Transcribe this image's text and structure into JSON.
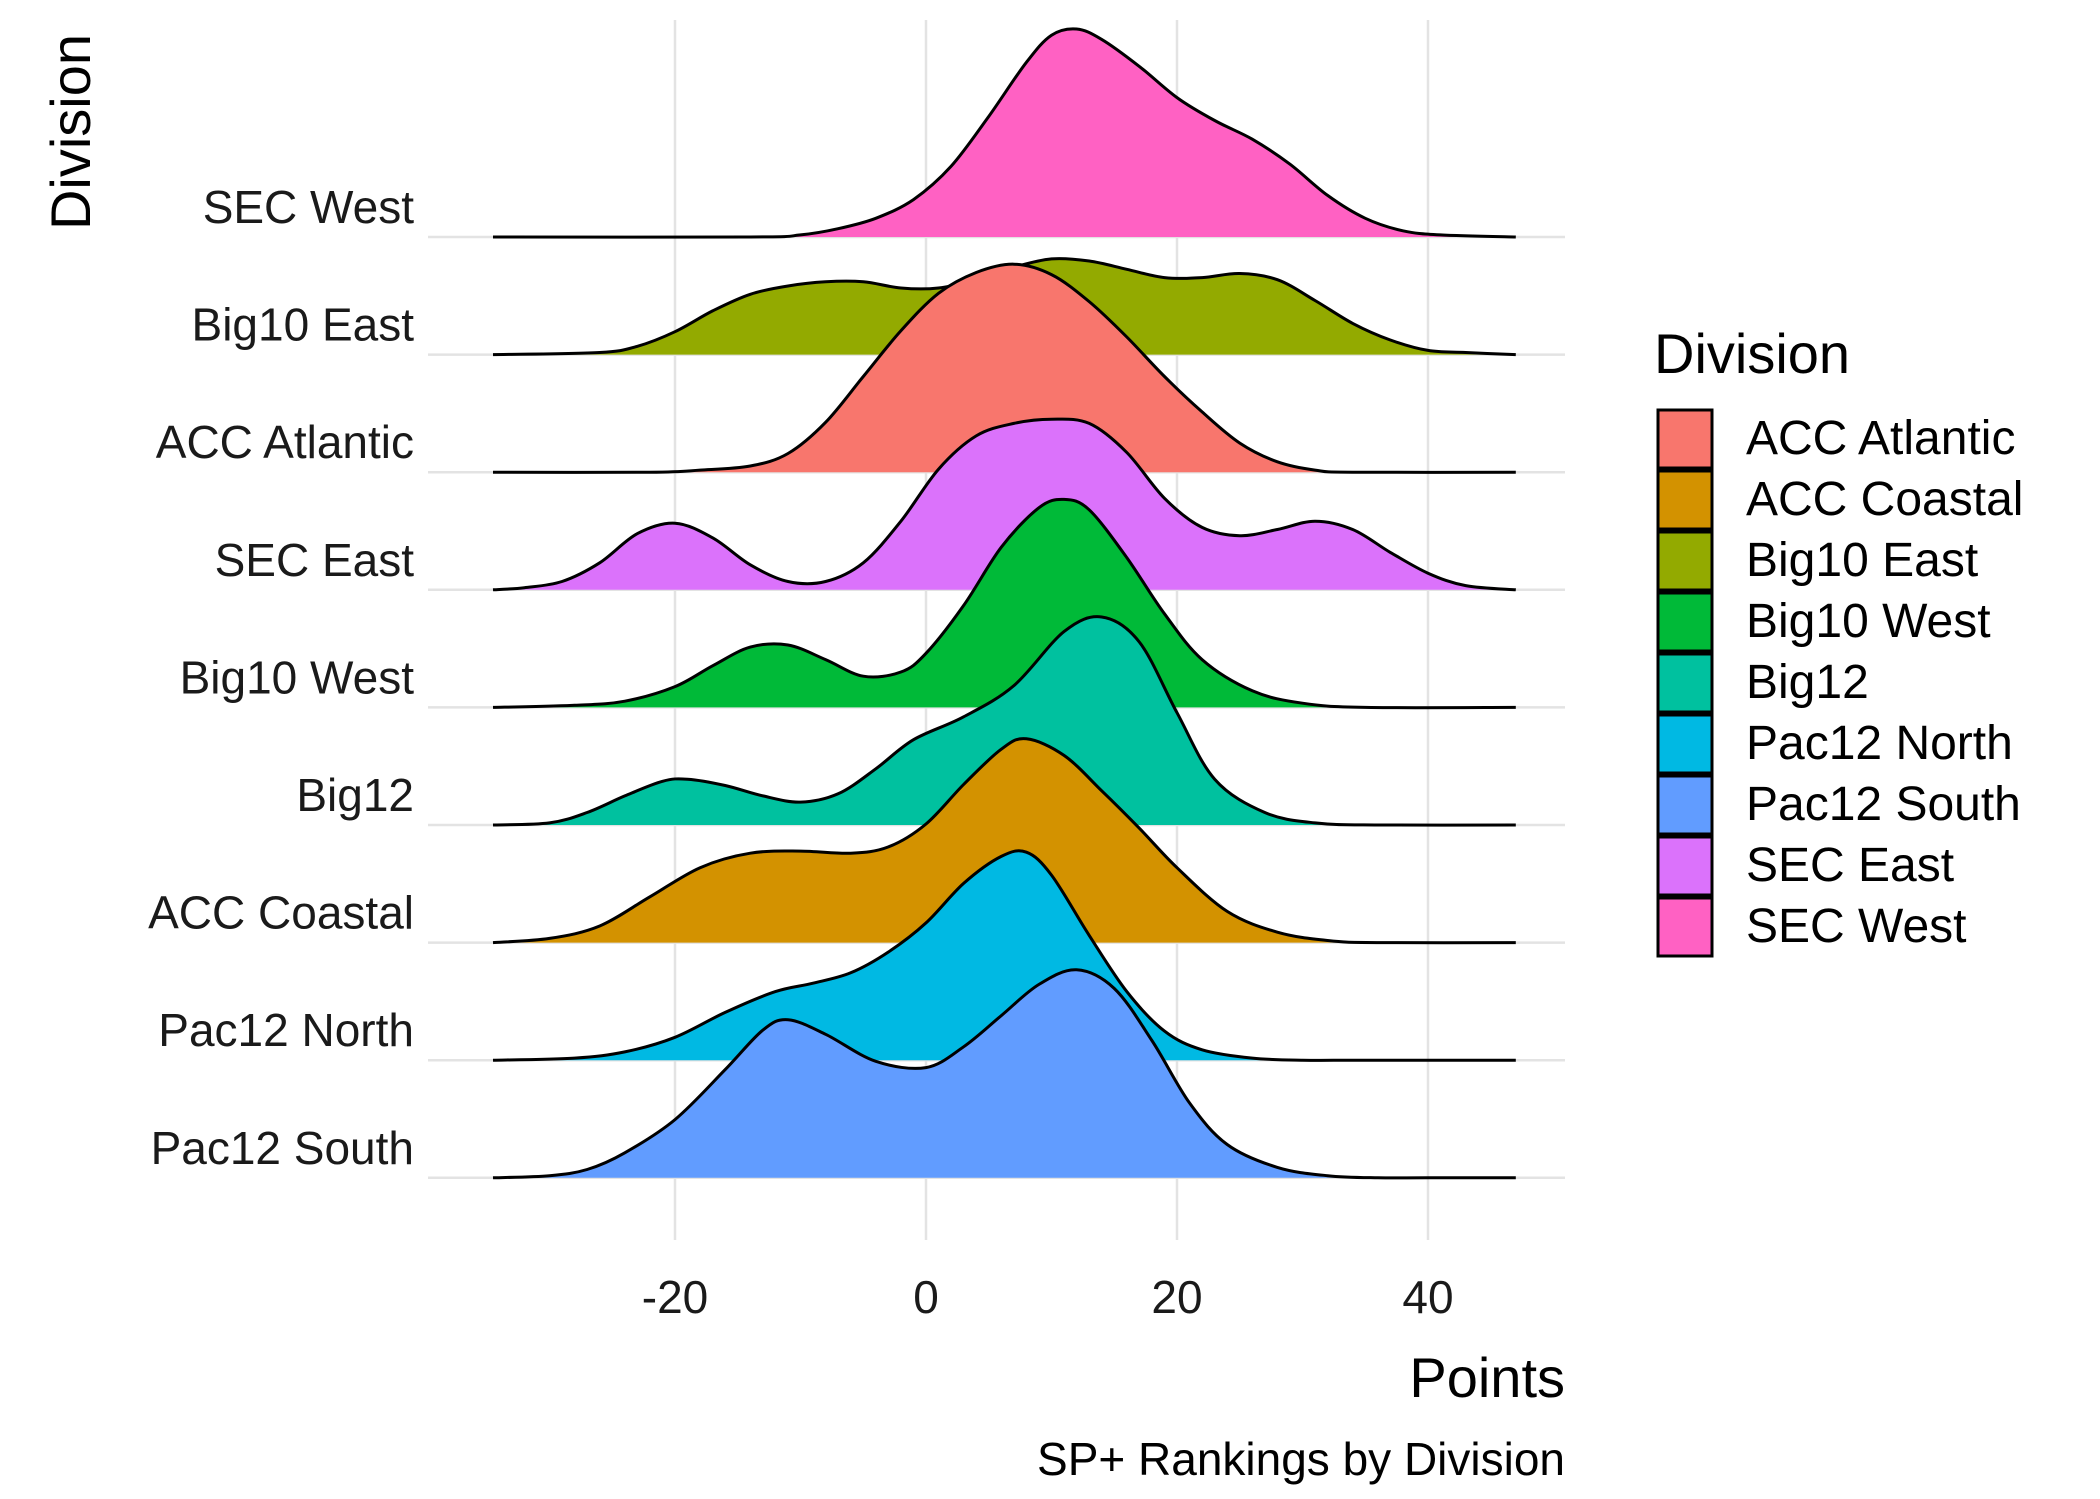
{
  "chart_data": {
    "type": "ridgeline",
    "xlabel": "Points",
    "ylabel": "Division",
    "caption": "SP+ Rankings by Division",
    "xlim": [
      -34.5,
      47
    ],
    "x_ticks": [
      -20,
      0,
      20,
      40
    ],
    "x_tick_labels": [
      "-20",
      "0",
      "20",
      "40"
    ],
    "grid": true,
    "legend": {
      "title": "Division",
      "position": "right",
      "entries": [
        "ACC Atlantic",
        "ACC Coastal",
        "Big10 East",
        "Big10 West",
        "Big12",
        "Pac12 North",
        "Pac12 South",
        "SEC East",
        "SEC West"
      ]
    },
    "colors": {
      "ACC Atlantic": "#F8766D",
      "ACC Coastal": "#D39200",
      "Big10 East": "#93AA00",
      "Big10 West": "#00BA38",
      "Big12": "#00C19F",
      "Pac12 North": "#00B9E3",
      "Pac12 South": "#619CFF",
      "SEC East": "#DB72FB",
      "SEC West": "#FF61C3"
    },
    "series": [
      {
        "name": "Pac12 South",
        "x": [
          -34.5,
          -30,
          -27,
          -24,
          -20,
          -16,
          -13,
          -11,
          -8,
          -4,
          0,
          3,
          6,
          9,
          12,
          15,
          18,
          21,
          24,
          28,
          32,
          36,
          40,
          47
        ],
        "values": [
          0,
          0.01,
          0.04,
          0.12,
          0.28,
          0.52,
          0.71,
          0.76,
          0.69,
          0.56,
          0.53,
          0.63,
          0.78,
          0.93,
          1.0,
          0.91,
          0.66,
          0.36,
          0.16,
          0.05,
          0.01,
          0,
          0,
          0
        ]
      },
      {
        "name": "Pac12 North",
        "x": [
          -34.5,
          -28,
          -24,
          -20,
          -16,
          -12,
          -9,
          -6,
          -3,
          0,
          3,
          6,
          8,
          10,
          13,
          16,
          19,
          22,
          26,
          30,
          35,
          47
        ],
        "values": [
          0,
          0.01,
          0.04,
          0.11,
          0.23,
          0.33,
          0.37,
          0.42,
          0.52,
          0.66,
          0.85,
          0.98,
          1.0,
          0.89,
          0.6,
          0.33,
          0.14,
          0.05,
          0.01,
          0,
          0,
          0
        ]
      },
      {
        "name": "ACC Coastal",
        "x": [
          -34.5,
          -30,
          -26,
          -22,
          -18,
          -14,
          -10,
          -6,
          -3,
          0,
          3,
          6,
          8,
          11,
          14,
          17,
          20,
          24,
          28,
          32,
          36,
          47
        ],
        "values": [
          0,
          0.02,
          0.08,
          0.22,
          0.36,
          0.43,
          0.44,
          0.43,
          0.46,
          0.57,
          0.76,
          0.93,
          0.98,
          0.9,
          0.73,
          0.55,
          0.36,
          0.15,
          0.05,
          0.01,
          0,
          0
        ]
      },
      {
        "name": "Big12",
        "x": [
          -34.5,
          -30,
          -27,
          -24,
          -21,
          -19,
          -16,
          -13,
          -10,
          -7,
          -4,
          -1,
          3,
          7,
          11,
          14,
          17,
          20,
          23,
          27,
          31,
          36,
          47
        ],
        "values": [
          0,
          0.01,
          0.06,
          0.14,
          0.21,
          0.22,
          0.19,
          0.14,
          0.11,
          0.15,
          0.27,
          0.41,
          0.52,
          0.67,
          0.93,
          1.0,
          0.88,
          0.54,
          0.22,
          0.06,
          0.01,
          0,
          0
        ]
      },
      {
        "name": "Big10 West",
        "x": [
          -34.5,
          -28,
          -24,
          -20,
          -17,
          -14,
          -11,
          -8,
          -5,
          -2,
          0,
          3,
          6,
          9,
          11,
          13,
          16,
          19,
          22,
          26,
          30,
          35,
          47
        ],
        "values": [
          0,
          0.01,
          0.03,
          0.1,
          0.2,
          0.29,
          0.3,
          0.23,
          0.15,
          0.17,
          0.26,
          0.49,
          0.77,
          0.96,
          1.0,
          0.95,
          0.72,
          0.45,
          0.23,
          0.08,
          0.02,
          0,
          0
        ]
      },
      {
        "name": "SEC East",
        "x": [
          -34.5,
          -32,
          -29,
          -26,
          -23,
          -20,
          -17,
          -14,
          -11,
          -8,
          -5,
          -2,
          1,
          4,
          7,
          10,
          13,
          16,
          19,
          22,
          25,
          28,
          31,
          34,
          37,
          40,
          43,
          47
        ],
        "values": [
          0,
          0.01,
          0.04,
          0.13,
          0.27,
          0.32,
          0.25,
          0.12,
          0.04,
          0.04,
          0.13,
          0.33,
          0.58,
          0.74,
          0.8,
          0.82,
          0.8,
          0.66,
          0.44,
          0.3,
          0.26,
          0.29,
          0.33,
          0.29,
          0.18,
          0.08,
          0.02,
          0
        ]
      },
      {
        "name": "ACC Atlantic",
        "x": [
          -34.5,
          -22,
          -18,
          -14,
          -11,
          -8,
          -5,
          -2,
          1,
          4,
          7,
          10,
          13,
          16,
          19,
          22,
          25,
          28,
          31,
          34,
          47
        ],
        "values": [
          0,
          0,
          0.01,
          0.03,
          0.09,
          0.24,
          0.46,
          0.68,
          0.86,
          0.96,
          1.0,
          0.95,
          0.82,
          0.65,
          0.46,
          0.29,
          0.14,
          0.05,
          0.01,
          0,
          0
        ]
      },
      {
        "name": "Big10 East",
        "x": [
          -34.5,
          -26,
          -23,
          -20,
          -17,
          -14,
          -11,
          -8,
          -5,
          -2,
          1,
          4,
          7,
          10,
          13,
          16,
          19,
          22,
          25,
          28,
          31,
          34,
          37,
          40,
          43,
          47
        ],
        "values": [
          0,
          0.01,
          0.04,
          0.11,
          0.21,
          0.29,
          0.33,
          0.35,
          0.35,
          0.32,
          0.32,
          0.36,
          0.42,
          0.46,
          0.45,
          0.41,
          0.37,
          0.37,
          0.39,
          0.36,
          0.26,
          0.15,
          0.07,
          0.02,
          0.01,
          0
        ]
      },
      {
        "name": "SEC West",
        "x": [
          -34.5,
          -14,
          -10,
          -7,
          -4,
          -1,
          2,
          5,
          8,
          10,
          12,
          14,
          17,
          20,
          23,
          26,
          29,
          32,
          35,
          38,
          41,
          47
        ],
        "values": [
          0,
          0,
          0.01,
          0.04,
          0.09,
          0.18,
          0.34,
          0.58,
          0.84,
          0.97,
          1.0,
          0.95,
          0.82,
          0.67,
          0.56,
          0.47,
          0.35,
          0.2,
          0.09,
          0.03,
          0.01,
          0
        ]
      }
    ]
  }
}
